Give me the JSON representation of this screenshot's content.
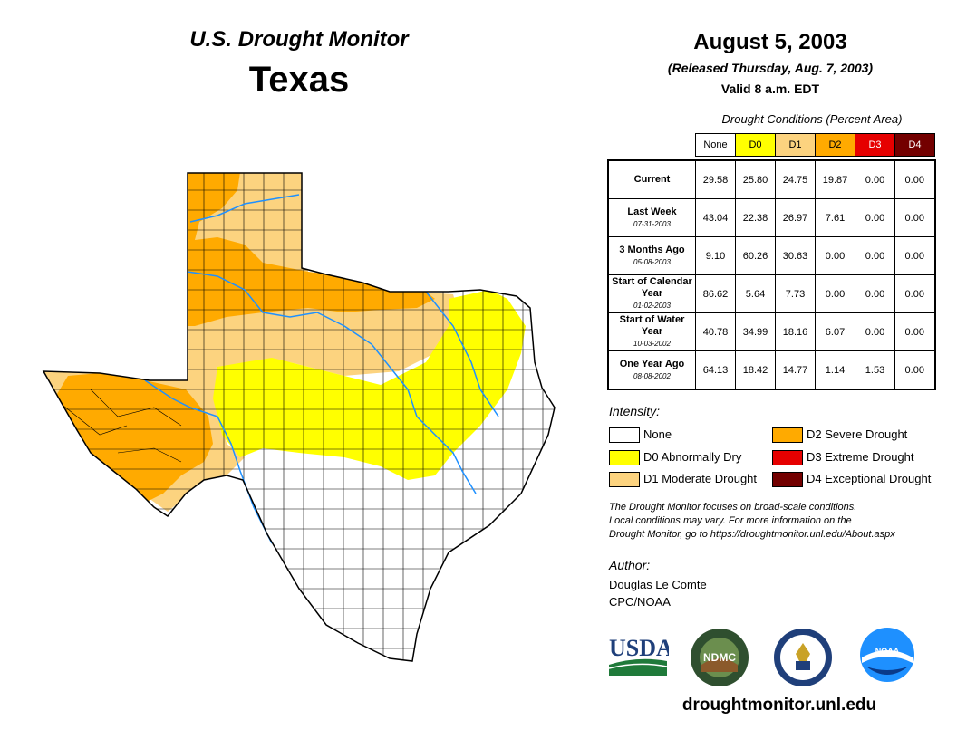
{
  "header": {
    "monitor_title": "U.S. Drought Monitor",
    "state": "Texas",
    "date": "August 5, 2003",
    "released": "(Released Thursday, Aug. 7, 2003)",
    "valid": "Valid 8 a.m. EDT"
  },
  "table": {
    "caption": "Drought Conditions (Percent Area)",
    "columns": [
      "None",
      "D0",
      "D1",
      "D2",
      "D3",
      "D4"
    ],
    "rows": [
      {
        "label": "Current",
        "sub": "",
        "values": [
          "29.58",
          "25.80",
          "24.75",
          "19.87",
          "0.00",
          "0.00"
        ]
      },
      {
        "label": "Last Week",
        "sub": "07-31-2003",
        "values": [
          "43.04",
          "22.38",
          "26.97",
          "7.61",
          "0.00",
          "0.00"
        ]
      },
      {
        "label": "3 Months Ago",
        "sub": "05-08-2003",
        "values": [
          "9.10",
          "60.26",
          "30.63",
          "0.00",
          "0.00",
          "0.00"
        ]
      },
      {
        "label": "Start of Calendar Year",
        "sub": "01-02-2003",
        "values": [
          "86.62",
          "5.64",
          "7.73",
          "0.00",
          "0.00",
          "0.00"
        ]
      },
      {
        "label": "Start of Water Year",
        "sub": "10-03-2002",
        "values": [
          "40.78",
          "34.99",
          "18.16",
          "6.07",
          "0.00",
          "0.00"
        ]
      },
      {
        "label": "One Year Ago",
        "sub": "08-08-2002",
        "values": [
          "64.13",
          "18.42",
          "14.77",
          "1.14",
          "1.53",
          "0.00"
        ]
      }
    ]
  },
  "legend": {
    "title": "Intensity:",
    "items": [
      {
        "label": "None",
        "color": "#ffffff"
      },
      {
        "label": "D0 Abnormally Dry",
        "color": "#ffff00"
      },
      {
        "label": "D1 Moderate Drought",
        "color": "#fcd37f"
      },
      {
        "label": "D2 Severe Drought",
        "color": "#ffaa00"
      },
      {
        "label": "D3 Extreme Drought",
        "color": "#e60000"
      },
      {
        "label": "D4 Exceptional Drought",
        "color": "#730000"
      }
    ]
  },
  "note": {
    "line1": "The Drought Monitor focuses on broad-scale conditions.",
    "line2": "Local conditions may vary. For more information on the",
    "line3": "Drought Monitor, go to https://droughtmonitor.unl.edu/About.aspx"
  },
  "author": {
    "label": "Author:",
    "name": "Douglas Le Comte",
    "org": "CPC/NOAA"
  },
  "logos": {
    "usda": "USDA",
    "ndmc": "NDMC",
    "noaa": "NOAA"
  },
  "footer_url": "droughtmonitor.unl.edu"
}
